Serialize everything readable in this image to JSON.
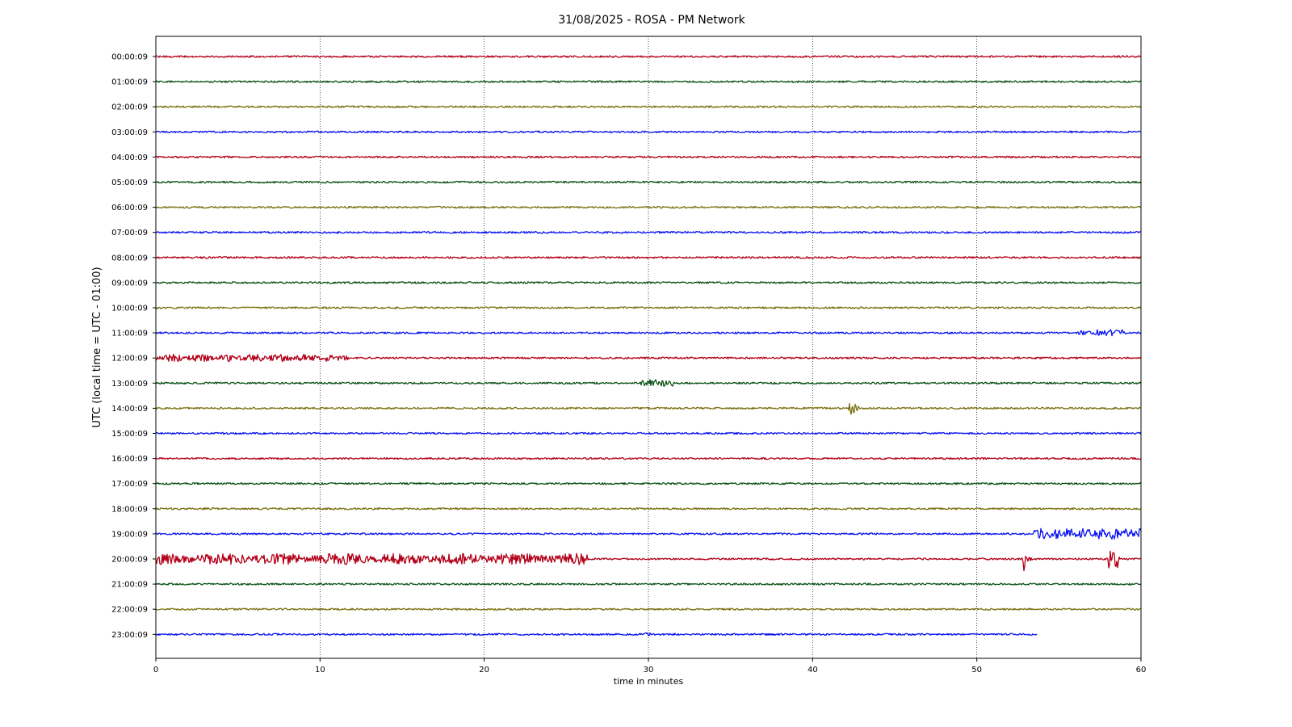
{
  "chart_data": {
    "type": "line",
    "title": "31/08/2025 - ROSA - PM Network",
    "xlabel": "time in minutes",
    "ylabel": "UTC (local time = UTC - 01:00)",
    "xlim": [
      0,
      60
    ],
    "x_ticks": [
      0,
      10,
      20,
      30,
      40,
      50,
      60
    ],
    "grid": "vertical dotted at x ticks",
    "trace_colors": [
      "#b30018",
      "#0a5213",
      "#7a7010",
      "#0a14f0"
    ],
    "rows": [
      {
        "label": "00:00:09",
        "color": "#b30018",
        "events": []
      },
      {
        "label": "01:00:09",
        "color": "#0a5213",
        "events": []
      },
      {
        "label": "02:00:09",
        "color": "#7a7010",
        "events": []
      },
      {
        "label": "03:00:09",
        "color": "#0a14f0",
        "events": []
      },
      {
        "label": "04:00:09",
        "color": "#b30018",
        "events": []
      },
      {
        "label": "05:00:09",
        "color": "#0a5213",
        "events": []
      },
      {
        "label": "06:00:09",
        "color": "#7a7010",
        "events": []
      },
      {
        "label": "07:00:09",
        "color": "#0a14f0",
        "events": []
      },
      {
        "label": "08:00:09",
        "color": "#b30018",
        "events": []
      },
      {
        "label": "09:00:09",
        "color": "#0a5213",
        "events": []
      },
      {
        "label": "10:00:09",
        "color": "#7a7010",
        "events": []
      },
      {
        "label": "11:00:09",
        "color": "#0a14f0",
        "events": [
          {
            "start": 56.2,
            "end": 59.1,
            "amp": 0.28
          }
        ]
      },
      {
        "label": "12:00:09",
        "color": "#b30018",
        "events": [
          {
            "start": 0,
            "end": 11.8,
            "amp": 0.3
          }
        ]
      },
      {
        "label": "13:00:09",
        "color": "#0a5213",
        "events": [
          {
            "start": 29.5,
            "end": 31.5,
            "amp": 0.32
          }
        ]
      },
      {
        "label": "14:00:09",
        "color": "#7a7010",
        "events": [
          {
            "start": 42.1,
            "end": 43.5,
            "amp": 1.4
          }
        ]
      },
      {
        "label": "15:00:09",
        "color": "#0a14f0",
        "events": []
      },
      {
        "label": "16:00:09",
        "color": "#b30018",
        "events": []
      },
      {
        "label": "17:00:09",
        "color": "#0a5213",
        "events": []
      },
      {
        "label": "18:00:09",
        "color": "#7a7010",
        "events": []
      },
      {
        "label": "19:00:09",
        "color": "#0a14f0",
        "events": [
          {
            "start": 53.5,
            "end": 60,
            "amp": 0.45
          }
        ]
      },
      {
        "label": "20:00:09",
        "color": "#b30018",
        "events": [
          {
            "start": 0,
            "end": 26.3,
            "amp": 0.45
          },
          {
            "start": 52.8,
            "end": 53.6,
            "amp": 1.4
          },
          {
            "start": 58,
            "end": 58.7,
            "amp": 0.8
          }
        ]
      },
      {
        "label": "21:00:09",
        "color": "#0a5213",
        "events": []
      },
      {
        "label": "22:00:09",
        "color": "#7a7010",
        "events": []
      },
      {
        "label": "23:00:09",
        "color": "#0a14f0",
        "end": 53.7,
        "events": [
          {
            "start": 29.8,
            "end": 30.3,
            "amp": 0.2
          }
        ]
      }
    ]
  }
}
